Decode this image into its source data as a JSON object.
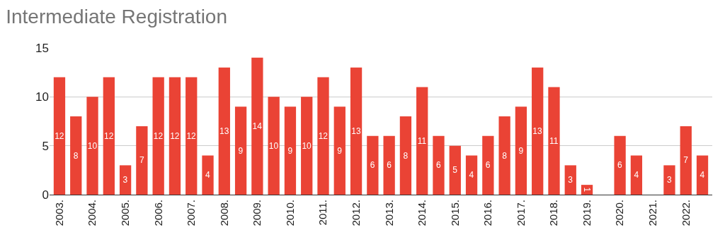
{
  "chart_data": {
    "type": "bar",
    "title": "Intermediate Registration",
    "categories": [
      "2003.",
      null,
      "2004.",
      null,
      "2005.",
      null,
      "2006.",
      null,
      "2007.",
      null,
      "2008.",
      null,
      "2009.",
      null,
      "2010.",
      null,
      "2011.",
      null,
      "2012.",
      null,
      "2013.",
      null,
      "2014.",
      null,
      "2015.",
      null,
      "2016.",
      null,
      "2017.",
      null,
      "2018.",
      null,
      "2019.",
      null,
      "2020.",
      null,
      "2021.",
      null,
      "2022.",
      null
    ],
    "values": [
      12,
      8,
      10,
      12,
      3,
      7,
      12,
      12,
      12,
      4,
      13,
      9,
      14,
      10,
      9,
      10,
      12,
      9,
      13,
      6,
      6,
      8,
      11,
      6,
      5,
      4,
      6,
      8,
      9,
      13,
      11,
      3,
      1,
      null,
      6,
      4,
      null,
      3,
      7,
      4
    ],
    "color": "#ea4335",
    "ylim": [
      0,
      15
    ],
    "yticks": [
      0,
      5,
      10,
      15
    ],
    "grid": "y",
    "data_labels": true
  }
}
